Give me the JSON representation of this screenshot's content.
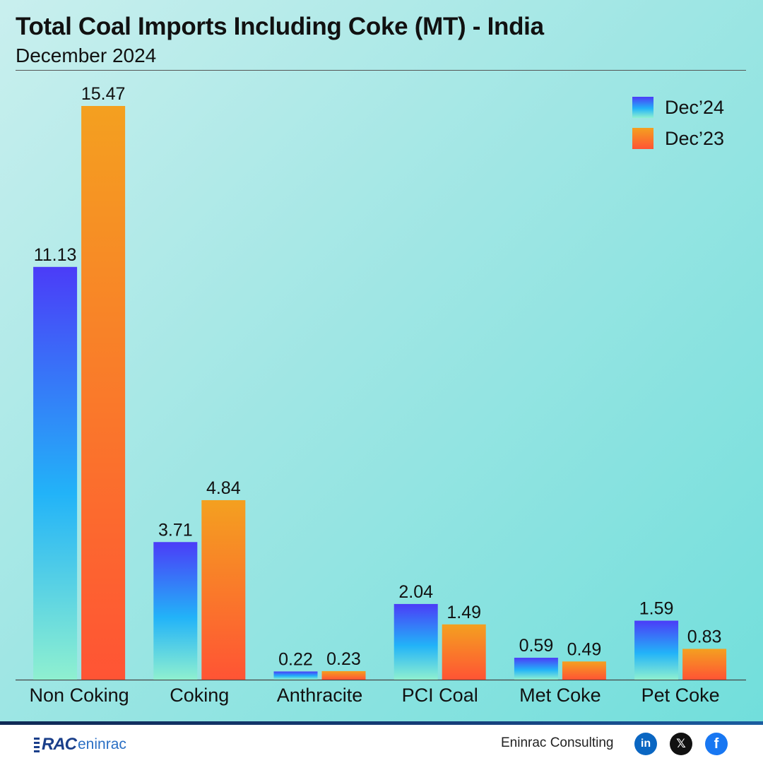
{
  "header": {
    "title": "Total Coal Imports Including Coke (MT) - India",
    "subtitle": "December 2024"
  },
  "colors": {
    "dec24_top": "#4b3cf8",
    "dec24_mid": "#22b3f8",
    "dec24_bottom": "#8ff0d0",
    "dec23_top": "#f4a020",
    "dec23_bottom": "#ff5434"
  },
  "chart_data": {
    "type": "bar",
    "title": "Total Coal Imports Including Coke (MT) - India",
    "subtitle": "December 2024",
    "categories": [
      "Non Coking",
      "Coking",
      "Anthracite",
      "PCI Coal",
      "Met Coke",
      "Pet Coke"
    ],
    "series": [
      {
        "name": "Dec’24",
        "values": [
          11.13,
          3.71,
          0.22,
          2.04,
          0.59,
          1.59
        ]
      },
      {
        "name": "Dec’23",
        "values": [
          15.47,
          4.84,
          0.23,
          1.49,
          0.49,
          0.83
        ]
      }
    ],
    "ylim": [
      0,
      15.47
    ],
    "grid": false,
    "legend_position": "top-right"
  },
  "footer": {
    "logo_primary": "RAC",
    "logo_secondary": "eninrac",
    "brand": "Eninrac Consulting",
    "social": [
      {
        "label": "in",
        "icon": "linkedin-icon"
      },
      {
        "label": "𝕏",
        "icon": "x-icon"
      },
      {
        "label": "f",
        "icon": "facebook-icon"
      }
    ]
  }
}
